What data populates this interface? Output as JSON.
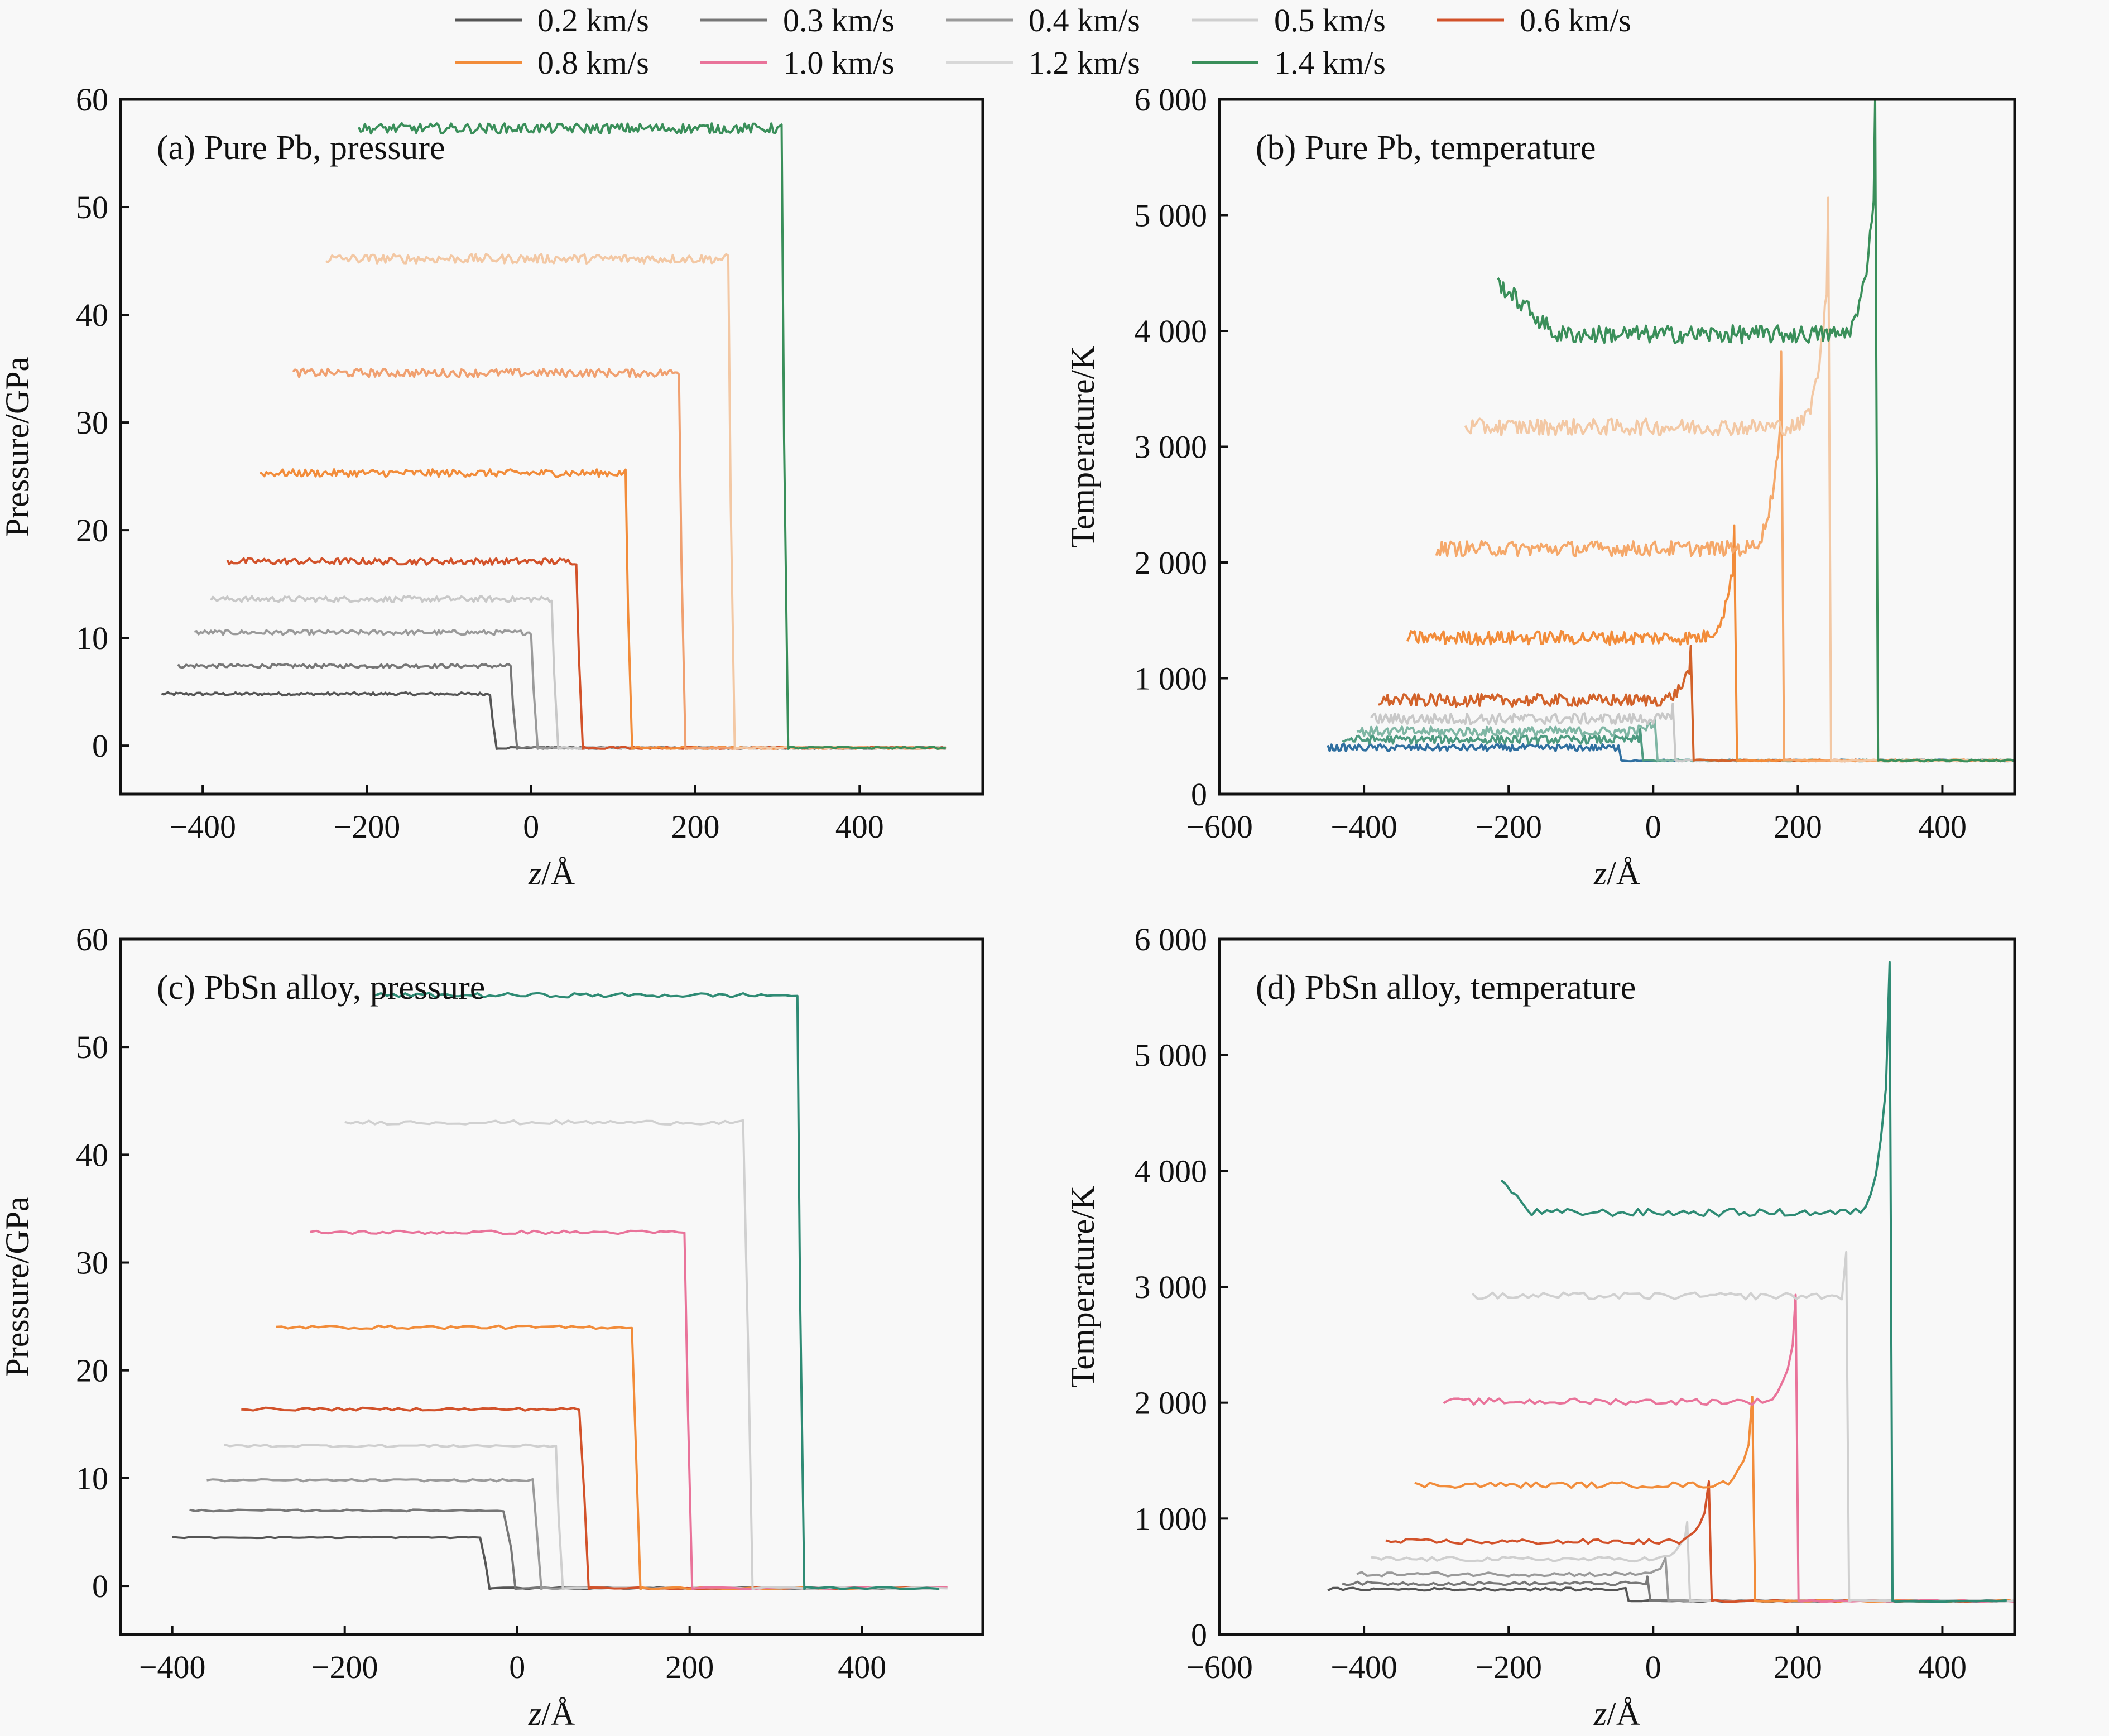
{
  "legend": {
    "placement": "top-center",
    "entries": [
      {
        "label": "0.2 km/s",
        "color": "#555555"
      },
      {
        "label": "0.3 km/s",
        "color": "#777777"
      },
      {
        "label": "0.4 km/s",
        "color": "#9a9a9a"
      },
      {
        "label": "0.5 km/s",
        "color": "#cfcfcf"
      },
      {
        "label": "0.6 km/s",
        "color": "#d2522a"
      },
      {
        "label": "0.8 km/s",
        "color": "#f28c3a"
      },
      {
        "label": "1.0 km/s",
        "color": "#e9739a"
      },
      {
        "label": "1.2 km/s",
        "color": "#d8d8d8"
      },
      {
        "label": "1.4 km/s",
        "color": "#3a8f5a"
      }
    ]
  },
  "chart_data": [
    {
      "id": "a",
      "type": "line",
      "title": "(a) Pure Pb, pressure",
      "xlabel_italic": "z",
      "xlabel_rest": "/Å",
      "ylabel": "Pressure/GPa",
      "xlim": [
        -500,
        550
      ],
      "ylim": [
        -4.5,
        60
      ],
      "xticks": [
        -400,
        -200,
        0,
        200,
        400
      ],
      "xtick_labels": [
        "−400",
        "−200",
        "0",
        "200",
        "400"
      ],
      "yticks": [
        0,
        10,
        20,
        30,
        40,
        50,
        60
      ],
      "ytick_labels": [
        "0",
        "10",
        "20",
        "30",
        "40",
        "50",
        "60"
      ],
      "grid": false,
      "noise": 0.35,
      "series": [
        {
          "name": "0.2 km/s",
          "color": "#555555",
          "x_start": -450,
          "front": -50,
          "plateau": 4.8,
          "x_end": 505
        },
        {
          "name": "0.3 km/s",
          "color": "#777777",
          "x_start": -430,
          "front": -25,
          "plateau": 7.4,
          "x_end": 505
        },
        {
          "name": "0.4 km/s",
          "color": "#9a9a9a",
          "x_start": -410,
          "front": 0,
          "plateau": 10.5,
          "x_end": 505
        },
        {
          "name": "0.5 km/s",
          "color": "#c8c8c8",
          "x_start": -390,
          "front": 25,
          "plateau": 13.6,
          "x_end": 505
        },
        {
          "name": "0.6 km/s",
          "color": "#d2522a",
          "x_start": -370,
          "front": 55,
          "plateau": 17.1,
          "x_end": 505
        },
        {
          "name": "0.8 km/s",
          "color": "#f28c3a",
          "x_start": -330,
          "front": 115,
          "plateau": 25.3,
          "x_end": 505
        },
        {
          "name": "1.0 km/s",
          "color": "#f0a070",
          "x_start": -290,
          "front": 180,
          "plateau": 34.6,
          "x_end": 505
        },
        {
          "name": "1.2 km/s",
          "color": "#f3c8a4",
          "x_start": -250,
          "front": 240,
          "plateau": 45.2,
          "x_end": 505
        },
        {
          "name": "1.4 km/s",
          "color": "#3a8f5a",
          "x_start": -210,
          "front": 305,
          "plateau": 57.3,
          "x_end": 505
        }
      ]
    },
    {
      "id": "b",
      "type": "line",
      "title": "(b) Pure Pb, temperature",
      "xlabel_italic": "z",
      "xlabel_rest": "/Å",
      "ylabel": "Temperature/K",
      "xlim": [
        -600,
        500
      ],
      "ylim": [
        0,
        6000
      ],
      "xticks": [
        -600,
        -400,
        -200,
        0,
        200,
        400
      ],
      "xtick_labels": [
        "−600",
        "−400",
        "−200",
        "0",
        "200",
        "400"
      ],
      "yticks": [
        0,
        1000,
        2000,
        3000,
        4000,
        5000,
        6000
      ],
      "ytick_labels": [
        "0",
        "1 000",
        "2 000",
        "3 000",
        "4 000",
        "5 000",
        "6 000"
      ],
      "grid": false,
      "noise": 60,
      "baseline": 290,
      "series": [
        {
          "name": "0.2 km/s",
          "color": "#2f6fa0",
          "x_start": -450,
          "front": -50,
          "plateau": 400,
          "peak": 420,
          "x_end": 500
        },
        {
          "name": "0.3 km/s",
          "color": "#4d9a80",
          "x_start": -430,
          "front": -20,
          "plateau": 470,
          "peak": 560,
          "x_end": 500
        },
        {
          "name": "0.4 km/s",
          "color": "#7fb6a4",
          "x_start": -410,
          "front": 0,
          "plateau": 540,
          "peak": 650,
          "x_end": 500
        },
        {
          "name": "0.5 km/s",
          "color": "#c8c8c8",
          "x_start": -390,
          "front": 25,
          "plateau": 650,
          "peak": 780,
          "x_end": 500
        },
        {
          "name": "0.6 km/s",
          "color": "#d2622a",
          "x_start": -380,
          "front": 50,
          "plateau": 810,
          "peak": 1280,
          "x_end": 500
        },
        {
          "name": "0.8 km/s",
          "color": "#f28c3a",
          "x_start": -340,
          "front": 110,
          "plateau": 1350,
          "peak": 2320,
          "x_end": 500
        },
        {
          "name": "1.0 km/s",
          "color": "#f5a86a",
          "x_start": -300,
          "front": 175,
          "plateau": 2120,
          "peak": 3820,
          "x_end": 500
        },
        {
          "name": "1.2 km/s",
          "color": "#f3c8a4",
          "x_start": -260,
          "front": 240,
          "plateau": 3170,
          "peak": 5150,
          "x_end": 500
        },
        {
          "name": "1.4 km/s",
          "color": "#3a8f5a",
          "x_start": -215,
          "front": 305,
          "plateau": 3970,
          "peak": 6000,
          "x_end": 500
        }
      ]
    },
    {
      "id": "c",
      "type": "line",
      "title": "(c) PbSn alloy, pressure",
      "xlabel_italic": "z",
      "xlabel_rest": "/Å",
      "ylabel": "Pressure/GPa",
      "xlim": [
        -460,
        540
      ],
      "ylim": [
        -4.5,
        60
      ],
      "xticks": [
        -400,
        -200,
        0,
        200,
        400
      ],
      "xtick_labels": [
        "−400",
        "−200",
        "0",
        "200",
        "400"
      ],
      "yticks": [
        0,
        10,
        20,
        30,
        40,
        50,
        60
      ],
      "ytick_labels": [
        "0",
        "10",
        "20",
        "30",
        "40",
        "50",
        "60"
      ],
      "grid": false,
      "noise": 0.15,
      "series": [
        {
          "name": "0.2 km/s",
          "color": "#555555",
          "x_start": -400,
          "front": -40,
          "plateau": 4.5,
          "x_end": 500
        },
        {
          "name": "0.3 km/s",
          "color": "#777777",
          "x_start": -380,
          "front": -10,
          "plateau": 7.0,
          "x_end": 500
        },
        {
          "name": "0.4 km/s",
          "color": "#9a9a9a",
          "x_start": -360,
          "front": 20,
          "plateau": 9.8,
          "x_end": 500
        },
        {
          "name": "0.5 km/s",
          "color": "#cfcfcf",
          "x_start": -340,
          "front": 45,
          "plateau": 13.0,
          "x_end": 500
        },
        {
          "name": "0.6 km/s",
          "color": "#d2522a",
          "x_start": -320,
          "front": 75,
          "plateau": 16.4,
          "x_end": 500
        },
        {
          "name": "0.8 km/s",
          "color": "#f28c3a",
          "x_start": -280,
          "front": 135,
          "plateau": 24.0,
          "x_end": 500
        },
        {
          "name": "1.0 km/s",
          "color": "#e9739a",
          "x_start": -240,
          "front": 195,
          "plateau": 32.8,
          "x_end": 500
        },
        {
          "name": "1.2 km/s",
          "color": "#d0d0d0",
          "x_start": -200,
          "front": 265,
          "plateau": 43.0,
          "x_end": 500
        },
        {
          "name": "1.4 km/s",
          "color": "#2e8b74",
          "x_start": -165,
          "front": 325,
          "plateau": 54.8,
          "x_end": 500
        }
      ]
    },
    {
      "id": "d",
      "type": "line",
      "title": "(d) PbSn alloy, temperature",
      "xlabel_italic": "z",
      "xlabel_rest": "/Å",
      "ylabel": "Temperature/K",
      "xlim": [
        -600,
        500
      ],
      "ylim": [
        0,
        6000
      ],
      "xticks": [
        -600,
        -400,
        -200,
        0,
        200,
        400
      ],
      "xtick_labels": [
        "−600",
        "−400",
        "−200",
        "0",
        "200",
        "400"
      ],
      "yticks": [
        0,
        1000,
        2000,
        3000,
        4000,
        5000,
        6000
      ],
      "ytick_labels": [
        "0",
        "1 000",
        "2 000",
        "3 000",
        "4 000",
        "5 000",
        "6 000"
      ],
      "grid": false,
      "noise": 25,
      "baseline": 290,
      "series": [
        {
          "name": "0.2 km/s",
          "color": "#555555",
          "x_start": -450,
          "front": -40,
          "plateau": 390,
          "peak": 400,
          "x_end": 500
        },
        {
          "name": "0.3 km/s",
          "color": "#777777",
          "x_start": -430,
          "front": -10,
          "plateau": 440,
          "peak": 500,
          "x_end": 500
        },
        {
          "name": "0.4 km/s",
          "color": "#9a9a9a",
          "x_start": -410,
          "front": 15,
          "plateau": 520,
          "peak": 660,
          "x_end": 500
        },
        {
          "name": "0.5 km/s",
          "color": "#cfcfcf",
          "x_start": -390,
          "front": 45,
          "plateau": 650,
          "peak": 970,
          "x_end": 500
        },
        {
          "name": "0.6 km/s",
          "color": "#d2522a",
          "x_start": -370,
          "front": 75,
          "plateau": 800,
          "peak": 1320,
          "x_end": 500
        },
        {
          "name": "0.8 km/s",
          "color": "#f28c3a",
          "x_start": -330,
          "front": 135,
          "plateau": 1290,
          "peak": 2050,
          "x_end": 500
        },
        {
          "name": "1.0 km/s",
          "color": "#e9739a",
          "x_start": -290,
          "front": 195,
          "plateau": 2010,
          "peak": 2930,
          "x_end": 500
        },
        {
          "name": "1.2 km/s",
          "color": "#d0d0d0",
          "x_start": -250,
          "front": 265,
          "plateau": 2920,
          "peak": 3300,
          "x_end": 500
        },
        {
          "name": "1.4 km/s",
          "color": "#2e8b74",
          "x_start": -210,
          "front": 325,
          "plateau": 3640,
          "peak": 5800,
          "x_end": 500
        }
      ]
    }
  ]
}
